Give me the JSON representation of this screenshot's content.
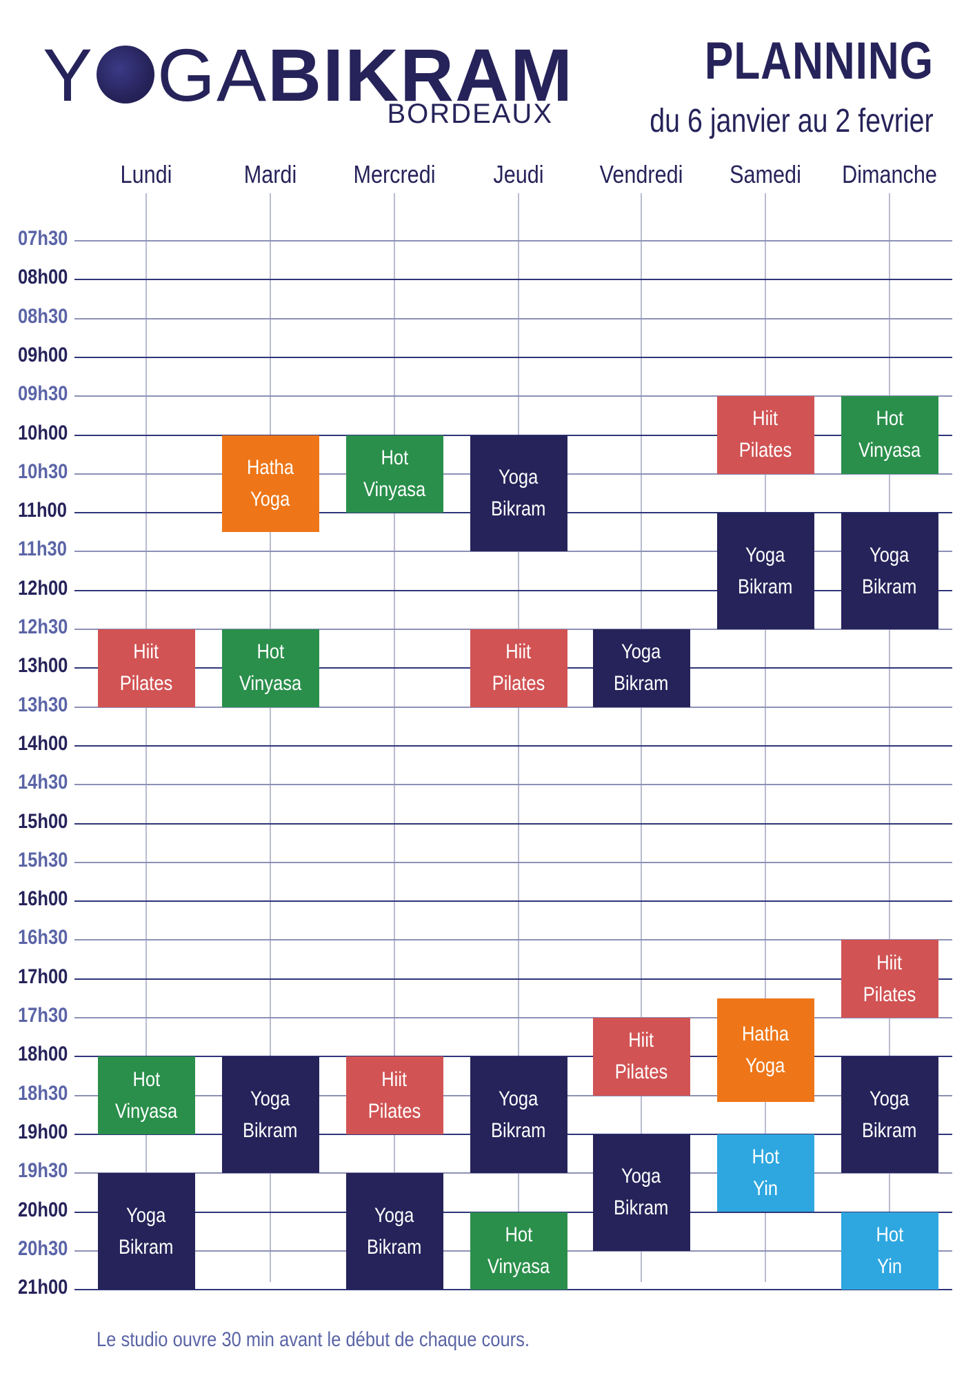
{
  "logo": {
    "yoga_y": "Y",
    "yoga_ga": "GA",
    "bikram": "BIKRAM",
    "city": "BORDEAUX"
  },
  "header": {
    "title": "PLANNING",
    "subtitle": "du 6 janvier au 2 fevrier"
  },
  "days": [
    "Lundi",
    "Mardi",
    "Mercredi",
    "Jeudi",
    "Vendredi",
    "Samedi",
    "Dimanche"
  ],
  "times": [
    "07h30",
    "08h00",
    "08h30",
    "09h00",
    "09h30",
    "10h00",
    "10h30",
    "11h00",
    "11h30",
    "12h00",
    "12h30",
    "13h00",
    "13h30",
    "14h00",
    "14h30",
    "15h00",
    "15h30",
    "16h00",
    "16h30",
    "17h00",
    "17h30",
    "18h00",
    "18h30",
    "19h00",
    "19h30",
    "20h00",
    "20h30",
    "21h00"
  ],
  "classes": [
    {
      "day": "Lundi",
      "start": "12h30",
      "end": "13h30",
      "line1": "Hiit",
      "line2": "Pilates",
      "type": "pilates"
    },
    {
      "day": "Lundi",
      "start": "18h00",
      "end": "19h00",
      "line1": "Hot",
      "line2": "Vinyasa",
      "type": "vinyasa"
    },
    {
      "day": "Lundi",
      "start": "19h30",
      "end": "21h00",
      "line1": "Yoga",
      "line2": "Bikram",
      "type": "bikram"
    },
    {
      "day": "Mardi",
      "start": "10h00",
      "end": "11h15",
      "line1": "Hatha",
      "line2": "Yoga",
      "type": "hatha"
    },
    {
      "day": "Mardi",
      "start": "12h30",
      "end": "13h30",
      "line1": "Hot",
      "line2": "Vinyasa",
      "type": "vinyasa"
    },
    {
      "day": "Mardi",
      "start": "18h00",
      "end": "19h30",
      "line1": "Yoga",
      "line2": "Bikram",
      "type": "bikram"
    },
    {
      "day": "Mercredi",
      "start": "10h00",
      "end": "11h00",
      "line1": "Hot",
      "line2": "Vinyasa",
      "type": "vinyasa"
    },
    {
      "day": "Mercredi",
      "start": "18h00",
      "end": "19h00",
      "line1": "Hiit",
      "line2": "Pilates",
      "type": "pilates"
    },
    {
      "day": "Mercredi",
      "start": "19h30",
      "end": "21h00",
      "line1": "Yoga",
      "line2": "Bikram",
      "type": "bikram"
    },
    {
      "day": "Jeudi",
      "start": "10h00",
      "end": "11h30",
      "line1": "Yoga",
      "line2": "Bikram",
      "type": "bikram"
    },
    {
      "day": "Jeudi",
      "start": "12h30",
      "end": "13h30",
      "line1": "Hiit",
      "line2": "Pilates",
      "type": "pilates"
    },
    {
      "day": "Jeudi",
      "start": "18h00",
      "end": "19h30",
      "line1": "Yoga",
      "line2": "Bikram",
      "type": "bikram"
    },
    {
      "day": "Jeudi",
      "start": "20h00",
      "end": "21h00",
      "line1": "Hot",
      "line2": "Vinyasa",
      "type": "vinyasa"
    },
    {
      "day": "Vendredi",
      "start": "12h30",
      "end": "13h30",
      "line1": "Yoga",
      "line2": "Bikram",
      "type": "bikram"
    },
    {
      "day": "Vendredi",
      "start": "17h30",
      "end": "18h30",
      "line1": "Hiit",
      "line2": "Pilates",
      "type": "pilates"
    },
    {
      "day": "Vendredi",
      "start": "19h00",
      "end": "20h30",
      "line1": "Yoga",
      "line2": "Bikram",
      "type": "bikram"
    },
    {
      "day": "Samedi",
      "start": "09h30",
      "end": "10h30",
      "line1": "Hiit",
      "line2": "Pilates",
      "type": "pilates"
    },
    {
      "day": "Samedi",
      "start": "11h00",
      "end": "12h30",
      "line1": "Yoga",
      "line2": "Bikram",
      "type": "bikram"
    },
    {
      "day": "Samedi",
      "start": "17h15",
      "end": "18h35",
      "line1": "Hatha",
      "line2": "Yoga",
      "type": "hatha"
    },
    {
      "day": "Samedi",
      "start": "19h00",
      "end": "20h00",
      "line1": "Hot",
      "line2": "Yin",
      "type": "yin"
    },
    {
      "day": "Dimanche",
      "start": "09h30",
      "end": "10h30",
      "line1": "Hot",
      "line2": "Vinyasa",
      "type": "vinyasa"
    },
    {
      "day": "Dimanche",
      "start": "11h00",
      "end": "12h30",
      "line1": "Yoga",
      "line2": "Bikram",
      "type": "bikram"
    },
    {
      "day": "Dimanche",
      "start": "16h30",
      "end": "17h30",
      "line1": "Hiit",
      "line2": "Pilates",
      "type": "pilates"
    },
    {
      "day": "Dimanche",
      "start": "18h00",
      "end": "19h30",
      "line1": "Yoga",
      "line2": "Bikram",
      "type": "bikram"
    },
    {
      "day": "Dimanche",
      "start": "20h00",
      "end": "21h00",
      "line1": "Hot",
      "line2": "Yin",
      "type": "yin"
    }
  ],
  "colors": {
    "bikram": "#26235a",
    "pilates": "#d15354",
    "vinyasa": "#2a8f4b",
    "hatha": "#ee7618",
    "yin": "#2ea7e0",
    "text": "#26235a"
  },
  "footer": {
    "note": "Le studio ouvre 30 min avant le début de chaque cours."
  }
}
